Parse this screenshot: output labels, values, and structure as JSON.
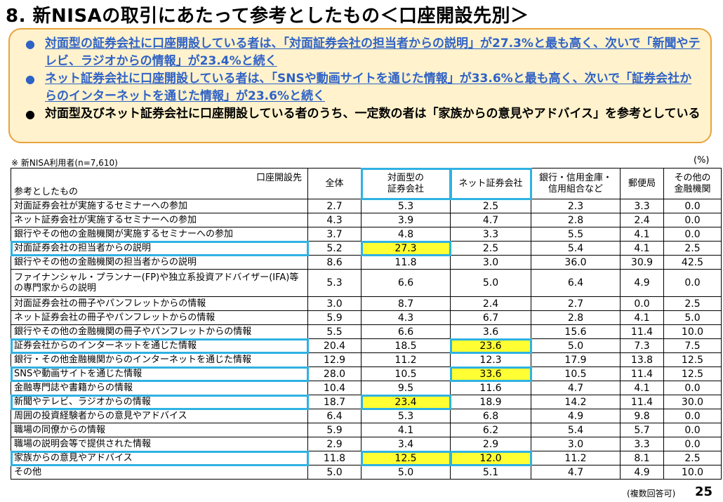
{
  "title": "8. 新NISAの取引にあたって参考としたもの＜口座開設先別＞",
  "summary": [
    {
      "style": "blue",
      "text": "対面型の証券会社に口座開設している者は、「対面証券会社の担当者からの説明」が27.3%と最も高く、次いで「新聞やテレビ、ラジオからの情報」が23.4%と続く"
    },
    {
      "style": "blue",
      "text": "ネット証券会社に口座開設している者は、「SNSや動画サイトを通じた情報」が33.6%と最も高く、次いで「証券会社からのインターネットを通じた情報」が23.6%と続く"
    },
    {
      "style": "black",
      "text": "対面型及びネット証券会社に口座開設している者のうち、一定数の者は「家族からの意見やアドバイス」を参考としている"
    }
  ],
  "bullet": "●",
  "note": "※ 新NISA利用者(n=7,610)",
  "unit": "(%)",
  "table": {
    "corner_top": "口座開設先",
    "corner_bottom": "参考としたもの",
    "columns": [
      "全体",
      "対面型の\n証券会社",
      "ネット証券会社",
      "銀行・信用金庫・\n信用組合など",
      "郵便局",
      "その他の\n金融機関"
    ],
    "rows": [
      {
        "label": "対面証券会社が実施するセミナーへの参加",
        "values": [
          "2.7",
          "5.3",
          "2.5",
          "2.3",
          "3.3",
          "0.0"
        ]
      },
      {
        "label": "ネット証券会社が実施するセミナーへの参加",
        "values": [
          "4.3",
          "3.9",
          "4.7",
          "2.8",
          "2.4",
          "0.0"
        ]
      },
      {
        "label": "銀行やその他の金融機関が実施するセミナーへの参加",
        "values": [
          "3.7",
          "4.8",
          "3.3",
          "5.5",
          "4.1",
          "0.0"
        ]
      },
      {
        "label": "対面証券会社の担当者からの説明",
        "values": [
          "5.2",
          "27.3",
          "2.5",
          "5.4",
          "4.1",
          "2.5"
        ],
        "highlight": [
          1
        ],
        "boxed": true
      },
      {
        "label": "銀行やその他の金融機関の担当者からの説明",
        "values": [
          "8.6",
          "11.8",
          "3.0",
          "36.0",
          "30.9",
          "42.5"
        ]
      },
      {
        "label": "ファイナンシャル・プランナー(FP)や独立系投資アドバイザー(IFA)等の専門家からの説明",
        "values": [
          "5.3",
          "6.6",
          "5.0",
          "6.4",
          "4.9",
          "0.0"
        ],
        "tall": true
      },
      {
        "label": "対面証券会社の冊子やパンフレットからの情報",
        "values": [
          "3.0",
          "8.7",
          "2.4",
          "2.7",
          "0.0",
          "2.5"
        ]
      },
      {
        "label": "ネット証券会社の冊子やパンフレットからの情報",
        "values": [
          "5.9",
          "4.3",
          "6.7",
          "2.8",
          "4.1",
          "5.0"
        ]
      },
      {
        "label": "銀行やその他の金融機関の冊子やパンフレットからの情報",
        "values": [
          "5.5",
          "6.6",
          "3.6",
          "15.6",
          "11.4",
          "10.0"
        ]
      },
      {
        "label": "証券会社からのインターネットを通じた情報",
        "values": [
          "20.4",
          "18.5",
          "23.6",
          "5.0",
          "7.3",
          "7.5"
        ],
        "highlight": [
          2
        ],
        "boxed": true
      },
      {
        "label": "銀行・その他金融機関からのインターネットを通じた情報",
        "values": [
          "12.9",
          "11.2",
          "12.3",
          "17.9",
          "13.8",
          "12.5"
        ]
      },
      {
        "label": "SNSや動画サイトを通じた情報",
        "values": [
          "28.0",
          "10.5",
          "33.6",
          "10.5",
          "11.4",
          "12.5"
        ],
        "highlight": [
          2
        ],
        "boxed": true
      },
      {
        "label": "金融専門誌や書籍からの情報",
        "values": [
          "10.4",
          "9.5",
          "11.6",
          "4.7",
          "4.1",
          "0.0"
        ]
      },
      {
        "label": "新聞やテレビ、ラジオからの情報",
        "values": [
          "18.7",
          "23.4",
          "18.9",
          "14.2",
          "11.4",
          "30.0"
        ],
        "highlight": [
          1
        ],
        "boxed": true
      },
      {
        "label": "周囲の投資経験者からの意見やアドバイス",
        "values": [
          "6.4",
          "5.3",
          "6.8",
          "4.9",
          "9.8",
          "0.0"
        ]
      },
      {
        "label": "職場の同僚からの情報",
        "values": [
          "5.9",
          "4.1",
          "6.2",
          "5.4",
          "5.7",
          "0.0"
        ]
      },
      {
        "label": "職場の説明会等で提供された情報",
        "values": [
          "2.9",
          "3.4",
          "2.9",
          "3.0",
          "3.3",
          "0.0"
        ]
      },
      {
        "label": "家族からの意見やアドバイス",
        "values": [
          "11.8",
          "12.5",
          "12.0",
          "11.2",
          "8.1",
          "2.5"
        ],
        "highlight": [
          1,
          2
        ],
        "boxed": true
      },
      {
        "label": "その他",
        "values": [
          "5.0",
          "5.0",
          "5.1",
          "4.7",
          "4.9",
          "10.0"
        ]
      }
    ]
  },
  "footnote": "(複数回答可)",
  "page_number": "25",
  "colors": {
    "highlight": "#ffff33",
    "box": "#2fb2e2",
    "summary_bg": "#fff2cc",
    "summary_border": "#e8a33c",
    "blue_text": "#2f62c6"
  }
}
